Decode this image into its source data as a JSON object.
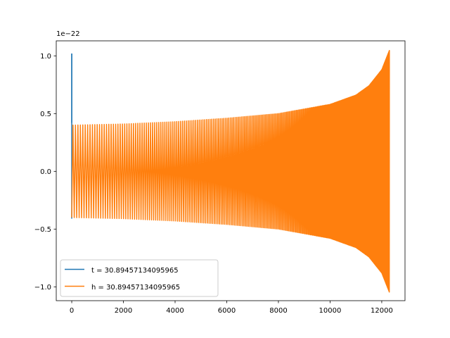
{
  "chart_data": {
    "type": "line",
    "title": "",
    "xlabel": "",
    "ylabel": "",
    "y_offset_label": "1e−22",
    "xlim": [
      -600,
      12900
    ],
    "ylim": [
      -1.12,
      1.13
    ],
    "x_ticks": [
      0,
      2000,
      4000,
      6000,
      8000,
      10000,
      12000
    ],
    "x_tick_labels": [
      "0",
      "2000",
      "4000",
      "6000",
      "8000",
      "10000",
      "12000"
    ],
    "y_ticks": [
      -1.0,
      -0.5,
      0.0,
      0.5,
      1.0
    ],
    "y_tick_labels": [
      "−1.0",
      "−0.5",
      "0.0",
      "0.5",
      "1.0"
    ],
    "grid": false,
    "legend_position": "lower-left",
    "series": [
      {
        "name": "t = 30.89457134095965",
        "color": "#1f77b4",
        "description_points": {
          "x": [
            0,
            0,
            0,
            0
          ],
          "y": [
            0.0,
            1.02,
            -0.41,
            0.0
          ]
        }
      },
      {
        "name": "h = 30.89457134095965",
        "color": "#ff7f0e",
        "envelope": {
          "x": [
            0,
            2000,
            4000,
            6000,
            8000,
            10000,
            11000,
            11500,
            12000,
            12300
          ],
          "amplitude": [
            0.4,
            0.41,
            0.43,
            0.46,
            0.5,
            0.58,
            0.66,
            0.74,
            0.88,
            1.05
          ]
        },
        "x_end": 12300
      }
    ]
  }
}
